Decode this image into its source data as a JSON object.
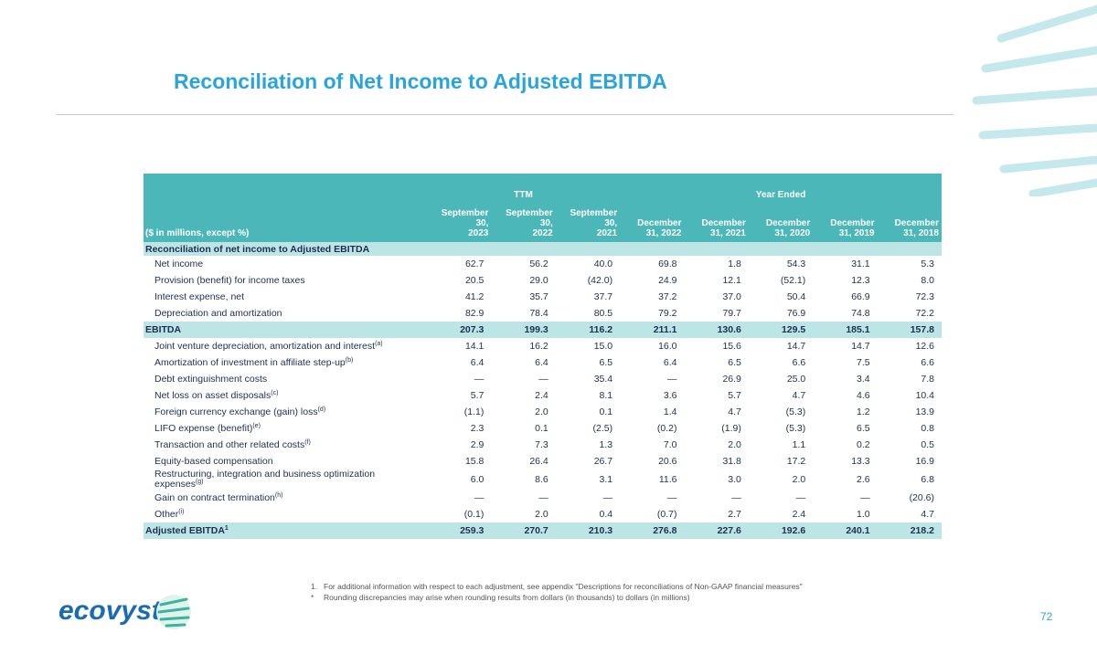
{
  "header": {
    "title": "Reconciliation of Net Income to Adjusted EBITDA"
  },
  "table": {
    "unit_label": "($ in millions, except %)",
    "groups": [
      {
        "label": "TTM",
        "span": 3
      },
      {
        "label": "Year Ended",
        "span": 5
      }
    ],
    "columns": [
      {
        "line1": "September 30,",
        "line2": "2023"
      },
      {
        "line1": "September 30,",
        "line2": "2022"
      },
      {
        "line1": "September 30,",
        "line2": "2021"
      },
      {
        "line1": "December",
        "line2": "31, 2022"
      },
      {
        "line1": "December",
        "line2": "31, 2021"
      },
      {
        "line1": "December",
        "line2": "31, 2020"
      },
      {
        "line1": "December",
        "line2": "31, 2019"
      },
      {
        "line1": "December",
        "line2": "31, 2018"
      }
    ],
    "section": "Reconciliation of net income to Adjusted EBITDA",
    "rows": [
      {
        "label": "Net income",
        "values": [
          "62.7",
          "56.2",
          "40.0",
          "69.8",
          "1.8",
          "54.3",
          "31.1",
          "5.3"
        ]
      },
      {
        "label": "Provision (benefit) for income taxes",
        "values": [
          "20.5",
          "29.0",
          "(42.0)",
          "24.9",
          "12.1",
          "(52.1)",
          "12.3",
          "8.0"
        ]
      },
      {
        "label": "Interest expense, net",
        "values": [
          "41.2",
          "35.7",
          "37.7",
          "37.2",
          "37.0",
          "50.4",
          "66.9",
          "72.3"
        ]
      },
      {
        "label": "Depreciation and amortization",
        "values": [
          "82.9",
          "78.4",
          "80.5",
          "79.2",
          "79.7",
          "76.9",
          "74.8",
          "72.2"
        ]
      },
      {
        "label": "EBITDA",
        "bold": true,
        "values": [
          "207.3",
          "199.3",
          "116.2",
          "211.1",
          "130.6",
          "129.5",
          "185.1",
          "157.8"
        ]
      },
      {
        "label": "Joint venture depreciation, amortization and interest",
        "note": "(a)",
        "values": [
          "14.1",
          "16.2",
          "15.0",
          "16.0",
          "15.6",
          "14.7",
          "14.7",
          "12.6"
        ]
      },
      {
        "label": "Amortization of investment in affiliate step-up",
        "note": "(b)",
        "values": [
          "6.4",
          "6.4",
          "6.5",
          "6.4",
          "6.5",
          "6.6",
          "7.5",
          "6.6"
        ]
      },
      {
        "label": "Debt extinguishment costs",
        "values": [
          "—",
          "—",
          "35.4",
          "—",
          "26.9",
          "25.0",
          "3.4",
          "7.8"
        ]
      },
      {
        "label": "Net loss on asset disposals",
        "note": "(c)",
        "values": [
          "5.7",
          "2.4",
          "8.1",
          "3.6",
          "5.7",
          "4.7",
          "4.6",
          "10.4"
        ]
      },
      {
        "label": "Foreign currency exchange (gain) loss",
        "note": "(d)",
        "values": [
          "(1.1)",
          "2.0",
          "0.1",
          "1.4",
          "4.7",
          "(5.3)",
          "1.2",
          "13.9"
        ]
      },
      {
        "label": "LIFO expense (benefit)",
        "note": "(e)",
        "values": [
          "2.3",
          "0.1",
          "(2.5)",
          "(0.2)",
          "(1.9)",
          "(5.3)",
          "6.5",
          "0.8"
        ]
      },
      {
        "label": "Transaction and other related costs",
        "note": "(f)",
        "values": [
          "2.9",
          "7.3",
          "1.3",
          "7.0",
          "2.0",
          "1.1",
          "0.2",
          "0.5"
        ]
      },
      {
        "label": "Equity-based compensation",
        "values": [
          "15.8",
          "26.4",
          "26.7",
          "20.6",
          "31.8",
          "17.2",
          "13.3",
          "16.9"
        ]
      },
      {
        "label": "Restructuring, integration and business optimization expenses",
        "note": "(g)",
        "values": [
          "6.0",
          "8.6",
          "3.1",
          "11.6",
          "3.0",
          "2.0",
          "2.6",
          "6.8"
        ]
      },
      {
        "label": "Gain on contract termination",
        "note": "(h)",
        "values": [
          "—",
          "—",
          "—",
          "—",
          "—",
          "—",
          "—",
          "(20.6)"
        ]
      },
      {
        "label": "Other",
        "note": "(i)",
        "values": [
          "(0.1)",
          "2.0",
          "0.4",
          "(0.7)",
          "2.7",
          "2.4",
          "1.0",
          "4.7"
        ]
      },
      {
        "label": "Adjusted EBITDA",
        "note": "1",
        "bold": true,
        "values": [
          "259.3",
          "270.7",
          "210.3",
          "276.8",
          "227.6",
          "192.6",
          "240.1",
          "218.2"
        ]
      }
    ]
  },
  "footnotes": [
    {
      "marker": "1.",
      "text": "For additional information with respect to each adjustment, see appendix \"Descriptions for reconciliations of Non-GAAP financial  measures\""
    },
    {
      "marker": "*",
      "text": "Rounding discrepancies may arise when rounding results from dollars (in thousands) to dollars (in millions)"
    }
  ],
  "logo": "ecovyst",
  "page_number": "72"
}
